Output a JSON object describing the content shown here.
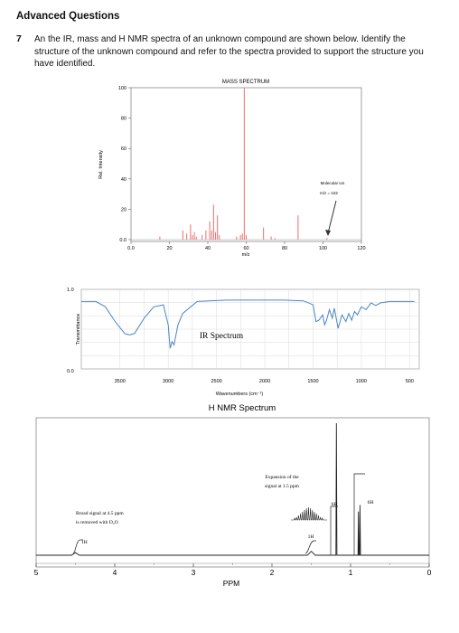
{
  "heading": "Advanced Questions",
  "question": {
    "number": "7",
    "text": "An the IR, mass and H NMR spectra of an unknown compound are shown below. Identify the structure of the unknown compound and refer to the spectra provided to support the structure you have identified."
  },
  "colors": {
    "ms_peaks": "#f07a7a",
    "ir_line": "#4a86c2",
    "ir_grid": "#dadada",
    "nmr_line": "#222222"
  },
  "chart_data": [
    {
      "type": "bar",
      "title": "MASS SPECTRUM",
      "xlabel": "m/z",
      "ylabel": "Rel. Intensity",
      "xlim": [
        0,
        120
      ],
      "ylim": [
        0,
        100
      ],
      "x_ticks": [
        "0.0",
        "20",
        "40",
        "60",
        "80",
        "100",
        "120"
      ],
      "y_ticks": [
        "0.0",
        "20",
        "40",
        "60",
        "80",
        "100"
      ],
      "peaks": [
        {
          "mz": 15,
          "intensity": 2
        },
        {
          "mz": 27,
          "intensity": 6
        },
        {
          "mz": 29,
          "intensity": 4
        },
        {
          "mz": 31,
          "intensity": 10
        },
        {
          "mz": 32,
          "intensity": 3
        },
        {
          "mz": 33,
          "intensity": 5
        },
        {
          "mz": 34,
          "intensity": 2
        },
        {
          "mz": 37,
          "intensity": 3
        },
        {
          "mz": 39,
          "intensity": 6
        },
        {
          "mz": 41,
          "intensity": 12
        },
        {
          "mz": 42,
          "intensity": 6
        },
        {
          "mz": 43,
          "intensity": 23
        },
        {
          "mz": 44,
          "intensity": 5
        },
        {
          "mz": 45,
          "intensity": 16
        },
        {
          "mz": 46,
          "intensity": 3
        },
        {
          "mz": 55,
          "intensity": 2
        },
        {
          "mz": 57,
          "intensity": 3
        },
        {
          "mz": 58,
          "intensity": 4
        },
        {
          "mz": 59,
          "intensity": 100
        },
        {
          "mz": 60,
          "intensity": 3
        },
        {
          "mz": 69,
          "intensity": 8
        },
        {
          "mz": 73,
          "intensity": 2
        },
        {
          "mz": 75,
          "intensity": 1
        },
        {
          "mz": 87,
          "intensity": 16
        },
        {
          "mz": 102,
          "intensity": 1
        }
      ],
      "annotations": [
        "Molecular ion",
        "m/z = 102"
      ]
    },
    {
      "type": "line",
      "title": "IR Spectrum",
      "xlabel": "Wavenumbers (cm⁻¹)",
      "ylabel": "Transmittance",
      "xlim": [
        3900,
        400
      ],
      "ylim": [
        0,
        1.0
      ],
      "x_ticks": [
        "3500",
        "3000",
        "2500",
        "2000",
        "1500",
        "1000",
        "500"
      ],
      "y_ticks": [
        "1.0",
        "0.0"
      ],
      "x": [
        3900,
        3750,
        3650,
        3550,
        3450,
        3400,
        3350,
        3250,
        3150,
        3050,
        3000,
        2980,
        2960,
        2940,
        2900,
        2850,
        2700,
        2400,
        2000,
        1800,
        1600,
        1500,
        1470,
        1440,
        1400,
        1380,
        1360,
        1330,
        1300,
        1280,
        1240,
        1200,
        1160,
        1130,
        1100,
        1070,
        1040,
        1000,
        950,
        900,
        850,
        800,
        700,
        600,
        450
      ],
      "y": [
        0.9,
        0.9,
        0.82,
        0.6,
        0.42,
        0.4,
        0.42,
        0.65,
        0.82,
        0.85,
        0.55,
        0.2,
        0.3,
        0.25,
        0.55,
        0.72,
        0.9,
        0.92,
        0.92,
        0.92,
        0.91,
        0.85,
        0.6,
        0.62,
        0.7,
        0.55,
        0.62,
        0.78,
        0.65,
        0.8,
        0.5,
        0.7,
        0.6,
        0.72,
        0.62,
        0.75,
        0.7,
        0.82,
        0.78,
        0.88,
        0.84,
        0.88,
        0.9,
        0.9,
        0.9
      ]
    },
    {
      "type": "line",
      "title": "H NMR Spectrum",
      "xlabel": "PPM",
      "xlim": [
        5,
        0
      ],
      "x_ticks": [
        "5",
        "4",
        "3",
        "2",
        "1",
        "0"
      ],
      "peaks": [
        {
          "ppm": 4.5,
          "height": 0.02,
          "width": 0.05
        },
        {
          "ppm": 1.5,
          "height": 0.03,
          "width": 0.05
        },
        {
          "ppm": 1.18,
          "height": 1.0,
          "width": 0.006
        },
        {
          "ppm": 0.9,
          "height": 0.33,
          "width": 0.006
        },
        {
          "ppm": 0.88,
          "height": 0.38,
          "width": 0.006
        }
      ],
      "annotations": {
        "broad_signal": "Broad signal at 4.5 ppm is removed with D₂O",
        "expansion": "Expansion of the signal at 1.5 ppm",
        "integrals": [
          "1H",
          "1H",
          "6H",
          "6H"
        ]
      }
    }
  ]
}
